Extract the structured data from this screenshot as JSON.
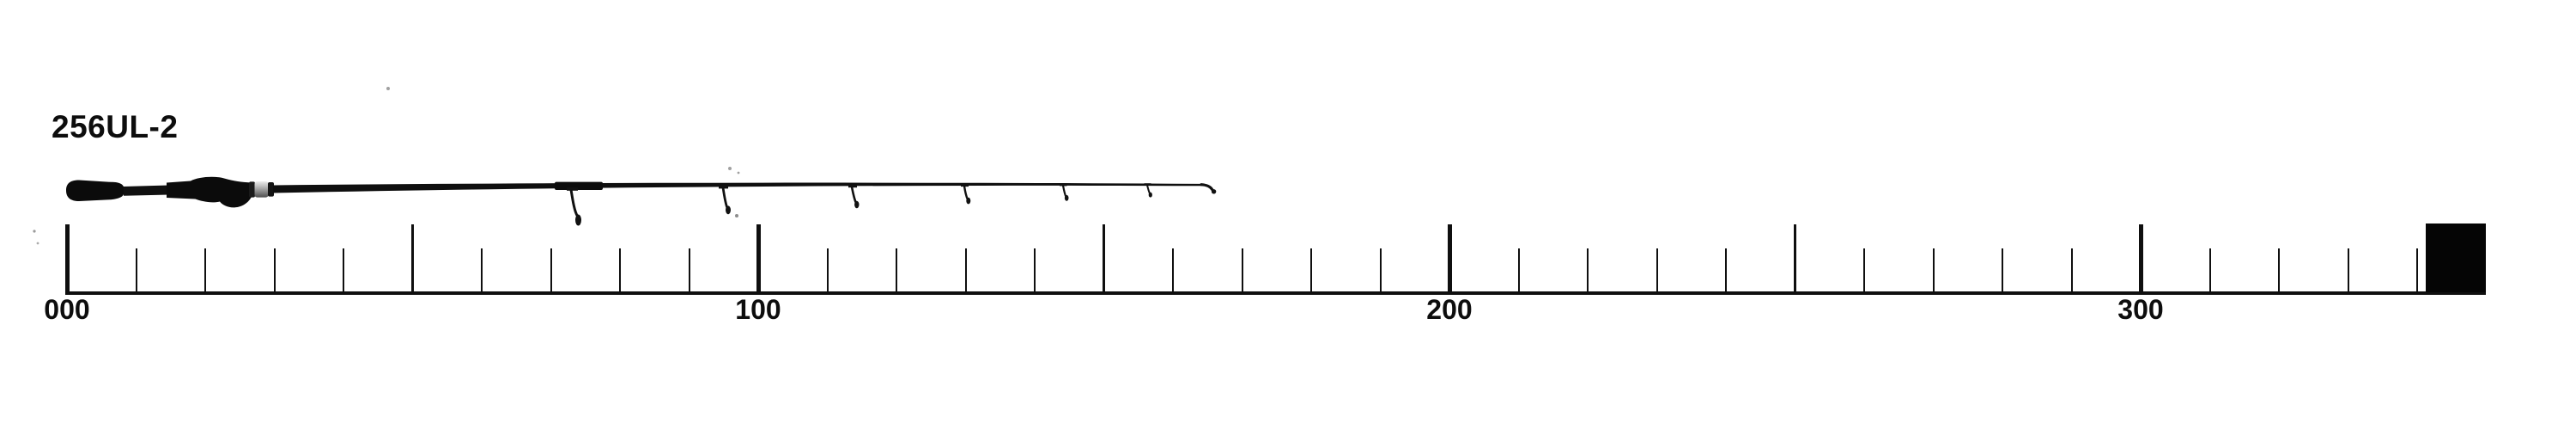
{
  "figure": {
    "model_label": "256UL-2",
    "subject": "two-piece spinning fishing rod shown above a measurement scale"
  },
  "rod": {
    "visible_line_guides": 6,
    "parts": [
      "butt-grip",
      "rear-grip-connector",
      "reel-seat",
      "winding-check-ring",
      "blank",
      "line-guides",
      "tip-top"
    ]
  },
  "ruler": {
    "min": 0,
    "scale_end": 350,
    "ticks_end": 340,
    "minor_step": 10,
    "half_step": 50,
    "major_step": 100,
    "major_labels": [
      {
        "value": 0,
        "text": "000"
      },
      {
        "value": 100,
        "text": "100"
      },
      {
        "value": 200,
        "text": "200"
      },
      {
        "value": 300,
        "text": "300"
      }
    ],
    "end_marker": "solid-black-square"
  },
  "colors": {
    "background": "#ffffff",
    "ink": "#0f0f0f",
    "ring_silver": "#a8a8a8"
  }
}
